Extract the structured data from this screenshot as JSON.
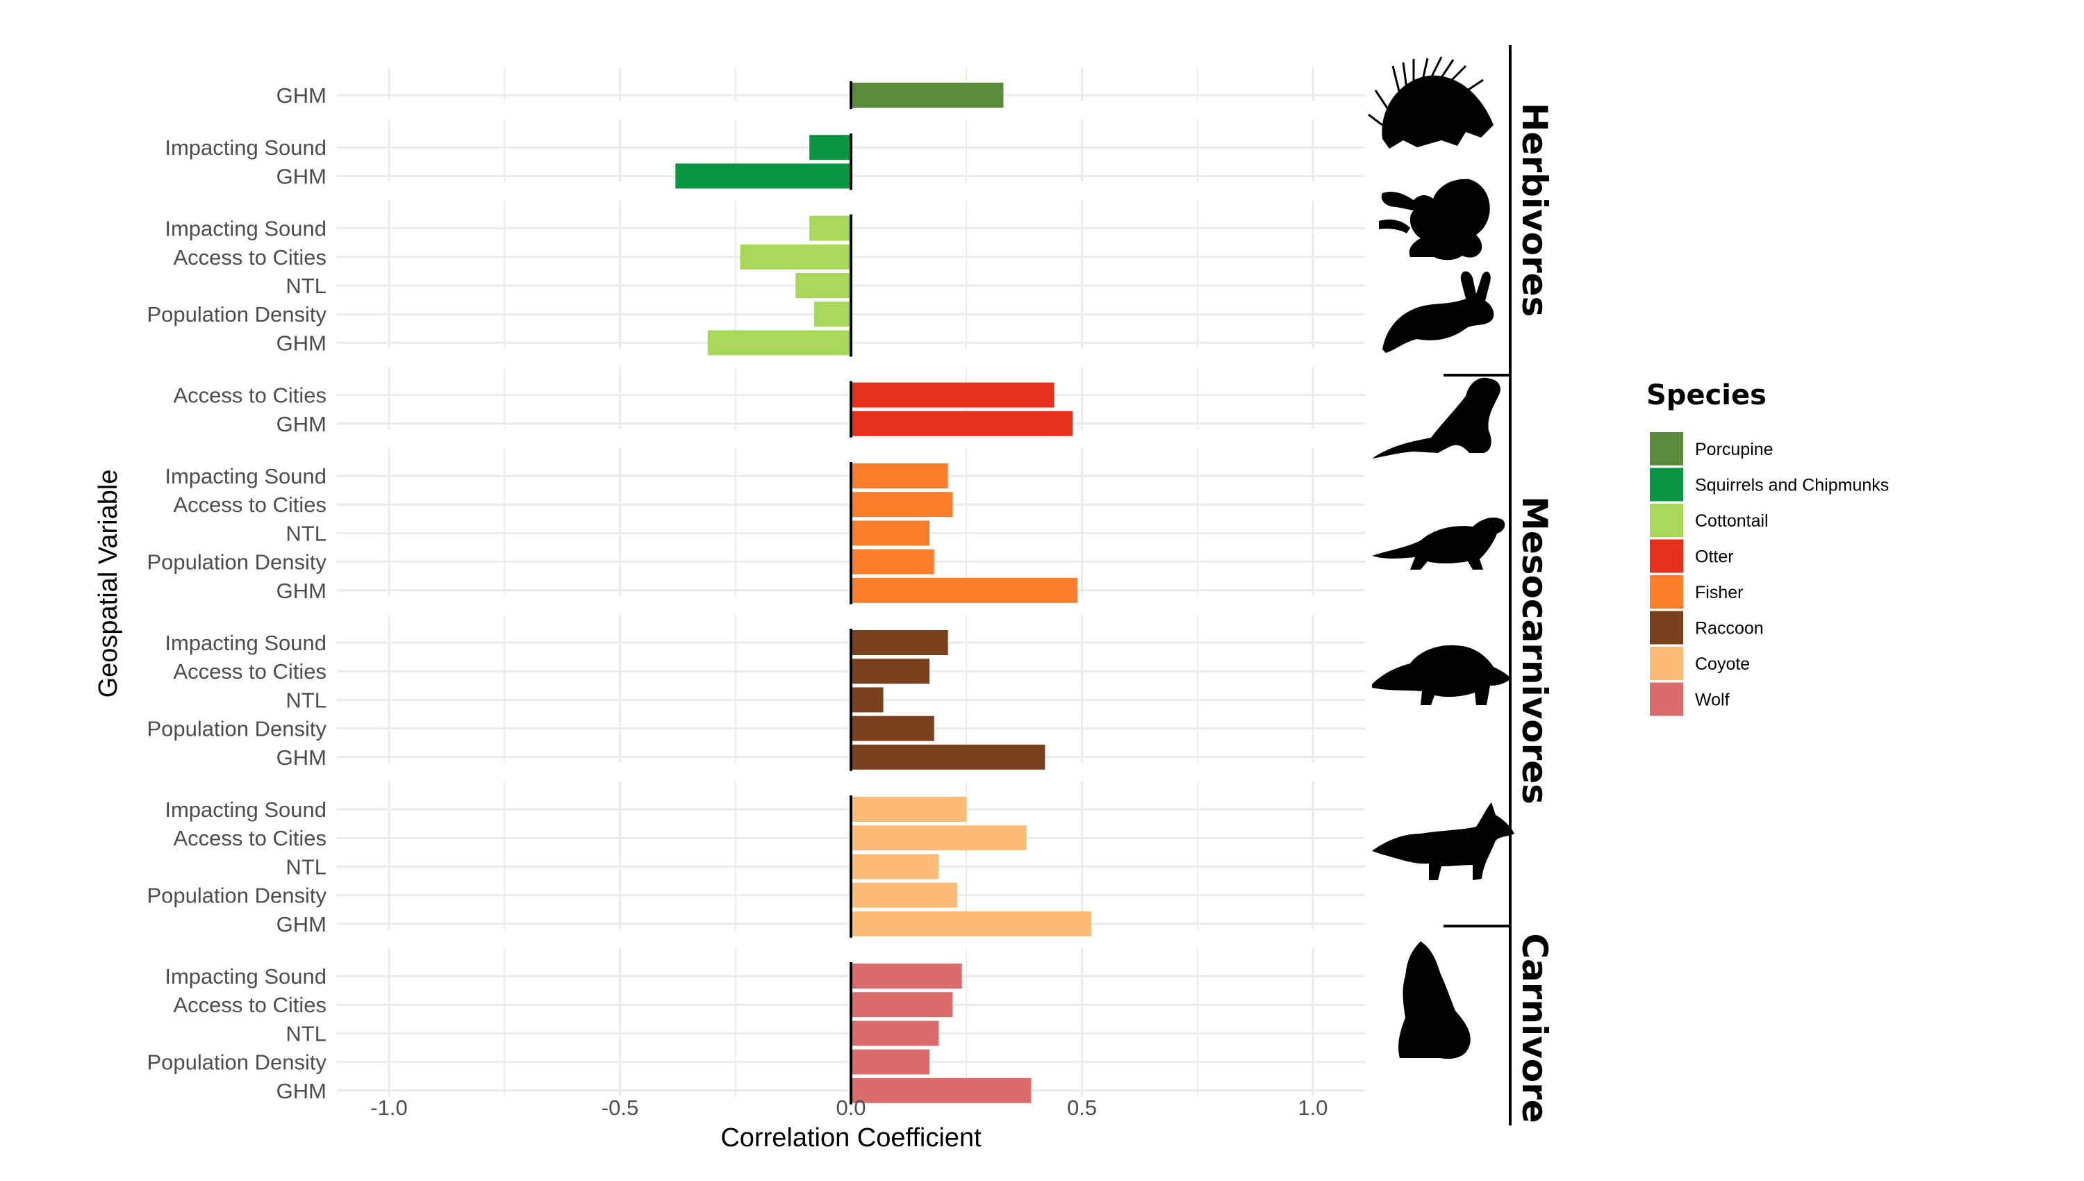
{
  "chart_data": {
    "type": "bar",
    "orientation": "horizontal",
    "xlabel": "Correlation Coefficient",
    "ylabel": "Geospatial Variable",
    "xlim": [
      -1.1,
      1.1
    ],
    "xticks": [
      -1.0,
      -0.5,
      0.0,
      0.5,
      1.0
    ],
    "xtick_labels": [
      "-1.0",
      "-0.5",
      "0.0",
      "0.5",
      "1.0"
    ],
    "grid": true,
    "legend": {
      "title": "Species",
      "placement": "right",
      "entries": [
        {
          "name": "Porcupine",
          "color": "#5c8a3c"
        },
        {
          "name": "Squirrels and Chipmunks",
          "color": "#0a9444"
        },
        {
          "name": "Cottontail",
          "color": "#a8d85a"
        },
        {
          "name": "Otter",
          "color": "#e8311c"
        },
        {
          "name": "Fisher",
          "color": "#fb7e2d"
        },
        {
          "name": "Raccoon",
          "color": "#7b401c"
        },
        {
          "name": "Coyote",
          "color": "#fcbc78"
        },
        {
          "name": "Wolf",
          "color": "#dc6b6b"
        }
      ]
    },
    "groups": [
      {
        "label": "Herbivores",
        "species": [
          "Porcupine",
          "Squirrels and Chipmunks",
          "Cottontail"
        ]
      },
      {
        "label": "Mesocarnivores",
        "species": [
          "Otter",
          "Fisher",
          "Raccoon",
          "Coyote"
        ]
      },
      {
        "label": "Carnivore",
        "species": [
          "Wolf"
        ]
      }
    ],
    "series": [
      {
        "name": "Porcupine",
        "color": "#5c8a3c",
        "categories": [
          "GHM"
        ],
        "values": [
          0.33
        ]
      },
      {
        "name": "Squirrels and Chipmunks",
        "color": "#0a9444",
        "categories": [
          "Impacting Sound",
          "GHM"
        ],
        "values": [
          -0.09,
          -0.38
        ]
      },
      {
        "name": "Cottontail",
        "color": "#a8d85a",
        "categories": [
          "Impacting Sound",
          "Access to Cities",
          "NTL",
          "Population Density",
          "GHM"
        ],
        "values": [
          -0.09,
          -0.24,
          -0.12,
          -0.08,
          -0.31
        ]
      },
      {
        "name": "Otter",
        "color": "#e8311c",
        "categories": [
          "Access to Cities",
          "GHM"
        ],
        "values": [
          0.44,
          0.48
        ]
      },
      {
        "name": "Fisher",
        "color": "#fb7e2d",
        "categories": [
          "Impacting Sound",
          "Access to Cities",
          "NTL",
          "Population Density",
          "GHM"
        ],
        "values": [
          0.21,
          0.22,
          0.17,
          0.18,
          0.49
        ]
      },
      {
        "name": "Raccoon",
        "color": "#7b401c",
        "categories": [
          "Impacting Sound",
          "Access to Cities",
          "NTL",
          "Population Density",
          "GHM"
        ],
        "values": [
          0.21,
          0.17,
          0.07,
          0.18,
          0.42
        ]
      },
      {
        "name": "Coyote",
        "color": "#fcbc78",
        "categories": [
          "Impacting Sound",
          "Access to Cities",
          "NTL",
          "Population Density",
          "GHM"
        ],
        "values": [
          0.25,
          0.38,
          0.19,
          0.23,
          0.52
        ]
      },
      {
        "name": "Wolf",
        "color": "#dc6b6b",
        "categories": [
          "Impacting Sound",
          "Access to Cities",
          "NTL",
          "Population Density",
          "GHM"
        ],
        "values": [
          0.24,
          0.22,
          0.19,
          0.17,
          0.39
        ]
      }
    ],
    "silhouettes": [
      "porcupine-icon",
      "squirrel-icon",
      "rabbit-icon",
      "otter-icon",
      "fisher-icon",
      "raccoon-icon",
      "coyote-icon",
      "wolf-icon"
    ]
  }
}
